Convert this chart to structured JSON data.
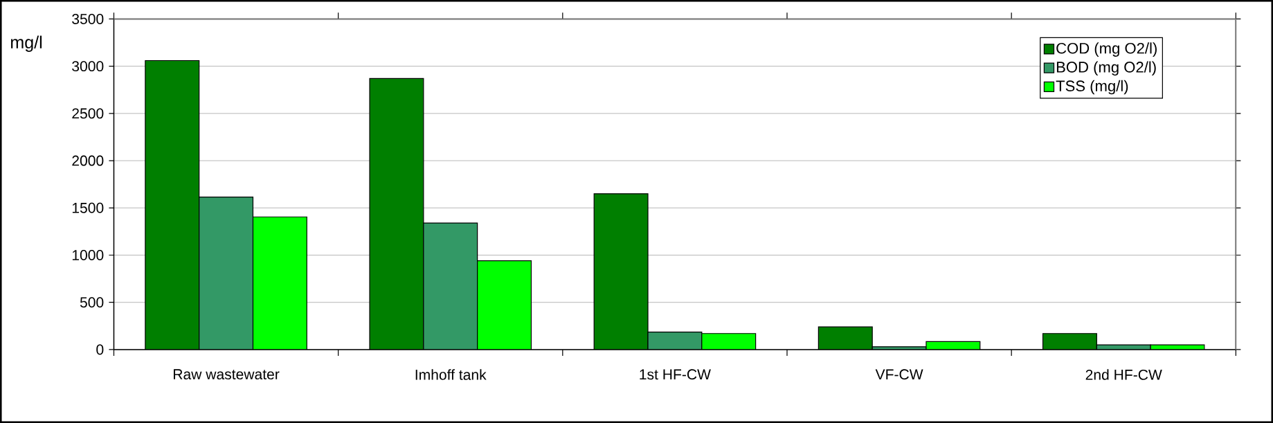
{
  "chart_data": {
    "type": "bar",
    "ylabel": "mg/l",
    "categories": [
      "Raw wastewater",
      "Imhoff tank",
      "1st HF-CW",
      "VF-CW",
      "2nd HF-CW"
    ],
    "series": [
      {
        "name": "COD (mg O2/l)",
        "color": "#007f00",
        "values": [
          3060,
          2870,
          1650,
          240,
          170
        ]
      },
      {
        "name": "BOD (mg O2/l)",
        "color": "#339966",
        "values": [
          1615,
          1340,
          185,
          30,
          50
        ]
      },
      {
        "name": "TSS  (mg/l)",
        "color": "#00ff00",
        "values": [
          1405,
          940,
          170,
          85,
          50
        ]
      }
    ],
    "ylim": [
      0,
      3500
    ],
    "yticks": [
      0,
      500,
      1000,
      1500,
      2000,
      2500,
      3000,
      3500
    ],
    "grid": "y",
    "legend": "top right"
  }
}
